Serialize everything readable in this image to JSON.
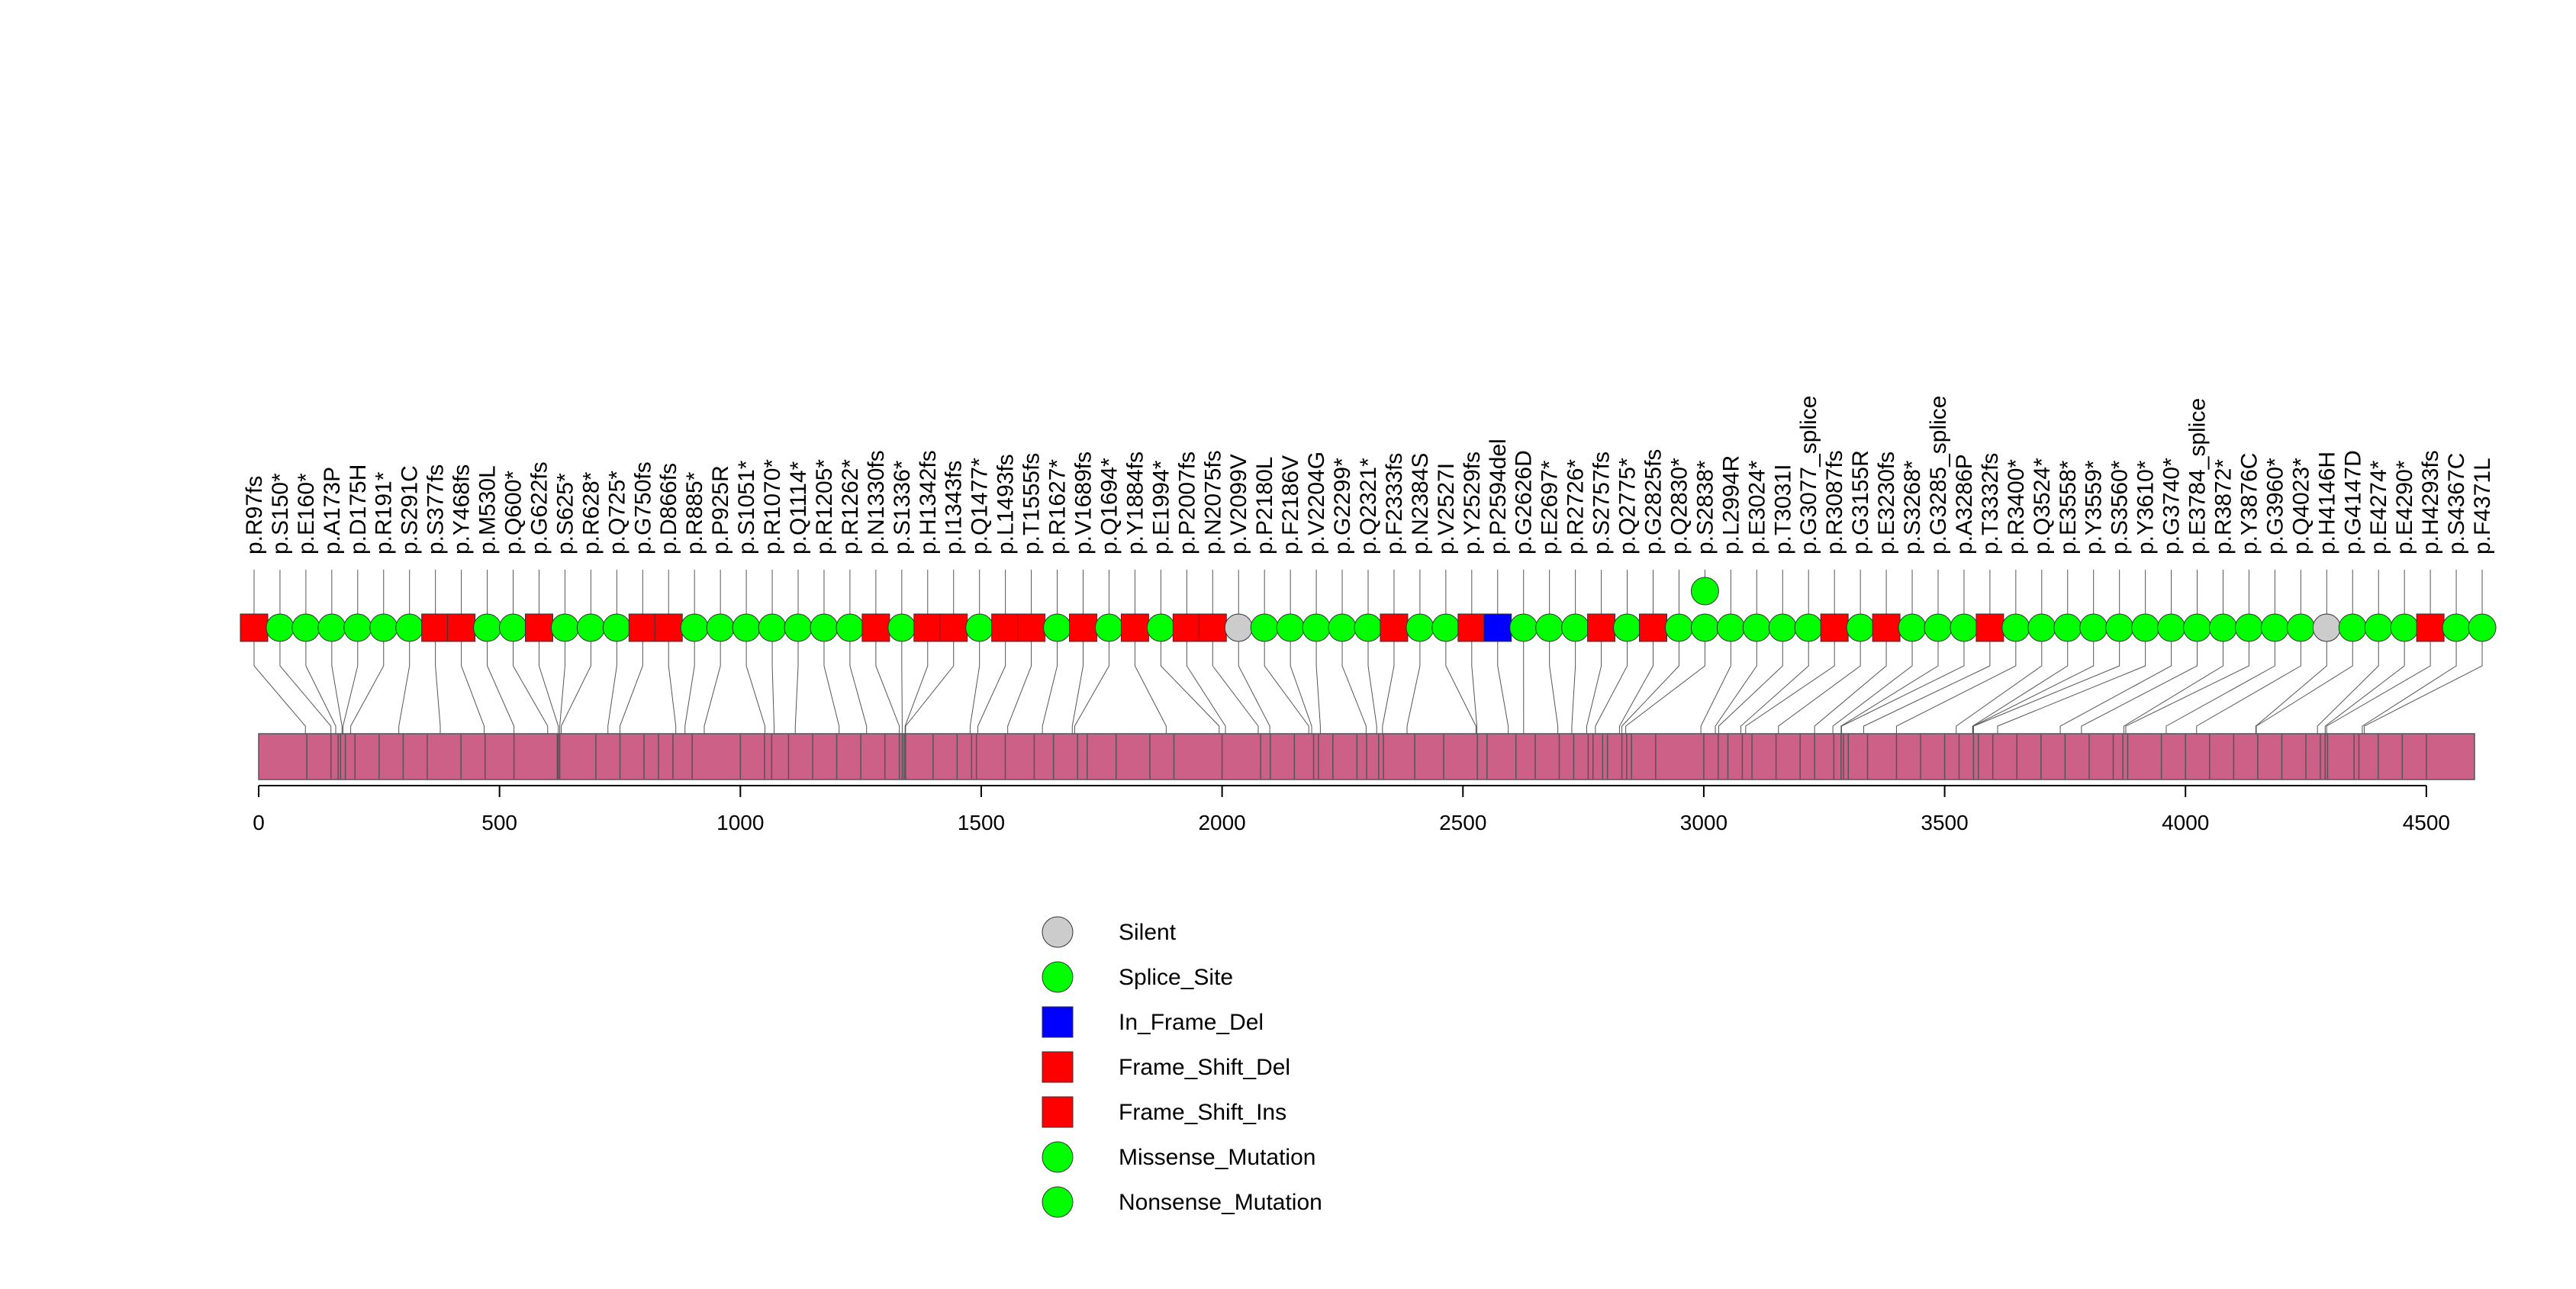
{
  "chart_data": {
    "type": "lollipop",
    "protein_length": 4600,
    "xlim": [
      0,
      4600
    ],
    "x_ticks": [
      0,
      500,
      1000,
      1500,
      2000,
      2500,
      3000,
      3500,
      4000,
      4500
    ],
    "x_tick_labels": [
      "0",
      "500",
      "1000",
      "1500",
      "2000",
      "2500",
      "3000",
      "3500",
      "4000",
      "4500"
    ],
    "domain_color": "#cc6087",
    "domain_dividers": [
      100,
      150,
      165,
      170,
      180,
      200,
      250,
      300,
      350,
      420,
      470,
      530,
      620,
      622,
      625,
      700,
      750,
      800,
      830,
      860,
      900,
      1000,
      1050,
      1065,
      1100,
      1150,
      1200,
      1250,
      1300,
      1330,
      1336,
      1340,
      1343,
      1400,
      1450,
      1480,
      1490,
      1550,
      1610,
      1650,
      1700,
      1720,
      1780,
      1850,
      1900,
      2000,
      2080,
      2100,
      2150,
      2190,
      2200,
      2230,
      2280,
      2300,
      2325,
      2335,
      2400,
      2460,
      2530,
      2550,
      2610,
      2650,
      2700,
      2730,
      2760,
      2770,
      2790,
      2800,
      2830,
      2840,
      2850,
      2900,
      3000,
      3030,
      3050,
      3080,
      3100,
      3150,
      3200,
      3230,
      3270,
      3285,
      3290,
      3300,
      3340,
      3400,
      3450,
      3500,
      3530,
      3560,
      3570,
      3600,
      3650,
      3700,
      3750,
      3800,
      3850,
      3870,
      3880,
      3950,
      4000,
      4050,
      4100,
      4150,
      4200,
      4250,
      4280,
      4290,
      4295,
      4350,
      4360,
      4400,
      4450,
      4500
    ],
    "mutation_colors": {
      "Silent": "#cccccc",
      "Splice_Site": "#00ff00",
      "In_Frame_Del": "#0000ff",
      "Frame_Shift_Del": "#ff0000",
      "Frame_Shift_Ins": "#ff0000",
      "Missense_Mutation": "#00ff00",
      "Nonsense_Mutation": "#00ff00"
    },
    "legend": [
      {
        "label": "Silent",
        "shape": "circle",
        "color": "#cccccc"
      },
      {
        "label": "Splice_Site",
        "shape": "circle",
        "color": "#00ff00"
      },
      {
        "label": "In_Frame_Del",
        "shape": "square",
        "color": "#0000ff"
      },
      {
        "label": "Frame_Shift_Del",
        "shape": "square",
        "color": "#ff0000"
      },
      {
        "label": "Frame_Shift_Ins",
        "shape": "square",
        "color": "#ff0000"
      },
      {
        "label": "Missense_Mutation",
        "shape": "circle",
        "color": "#00ff00"
      },
      {
        "label": "Nonsense_Mutation",
        "shape": "circle",
        "color": "#00ff00"
      }
    ],
    "mutations": [
      {
        "label": "p.R97fs",
        "position": 97,
        "type": "Frame_Shift_Del",
        "count": 1
      },
      {
        "label": "p.S150*",
        "position": 150,
        "type": "Nonsense_Mutation",
        "count": 1
      },
      {
        "label": "p.E160*",
        "position": 160,
        "type": "Nonsense_Mutation",
        "count": 1
      },
      {
        "label": "p.A173P",
        "position": 173,
        "type": "Missense_Mutation",
        "count": 1
      },
      {
        "label": "p.D175H",
        "position": 175,
        "type": "Missense_Mutation",
        "count": 1
      },
      {
        "label": "p.R191*",
        "position": 191,
        "type": "Nonsense_Mutation",
        "count": 1
      },
      {
        "label": "p.S291C",
        "position": 291,
        "type": "Missense_Mutation",
        "count": 1
      },
      {
        "label": "p.S377fs",
        "position": 377,
        "type": "Frame_Shift_Del",
        "count": 1
      },
      {
        "label": "p.Y468fs",
        "position": 468,
        "type": "Frame_Shift_Ins",
        "count": 1
      },
      {
        "label": "p.M530L",
        "position": 530,
        "type": "Missense_Mutation",
        "count": 1
      },
      {
        "label": "p.Q600*",
        "position": 600,
        "type": "Nonsense_Mutation",
        "count": 1
      },
      {
        "label": "p.G622fs",
        "position": 622,
        "type": "Frame_Shift_Del",
        "count": 1
      },
      {
        "label": "p.S625*",
        "position": 625,
        "type": "Nonsense_Mutation",
        "count": 1
      },
      {
        "label": "p.R628*",
        "position": 628,
        "type": "Nonsense_Mutation",
        "count": 1
      },
      {
        "label": "p.Q725*",
        "position": 725,
        "type": "Nonsense_Mutation",
        "count": 1
      },
      {
        "label": "p.G750fs",
        "position": 750,
        "type": "Frame_Shift_Del",
        "count": 1
      },
      {
        "label": "p.D866fs",
        "position": 866,
        "type": "Frame_Shift_Del",
        "count": 1
      },
      {
        "label": "p.R885*",
        "position": 885,
        "type": "Nonsense_Mutation",
        "count": 1
      },
      {
        "label": "p.P925R",
        "position": 925,
        "type": "Missense_Mutation",
        "count": 1
      },
      {
        "label": "p.S1051*",
        "position": 1051,
        "type": "Nonsense_Mutation",
        "count": 1
      },
      {
        "label": "p.R1070*",
        "position": 1070,
        "type": "Nonsense_Mutation",
        "count": 1
      },
      {
        "label": "p.Q1114*",
        "position": 1114,
        "type": "Nonsense_Mutation",
        "count": 1
      },
      {
        "label": "p.R1205*",
        "position": 1205,
        "type": "Nonsense_Mutation",
        "count": 1
      },
      {
        "label": "p.R1262*",
        "position": 1262,
        "type": "Nonsense_Mutation",
        "count": 1
      },
      {
        "label": "p.N1330fs",
        "position": 1330,
        "type": "Frame_Shift_Del",
        "count": 1
      },
      {
        "label": "p.S1336*",
        "position": 1336,
        "type": "Nonsense_Mutation",
        "count": 1
      },
      {
        "label": "p.H1342fs",
        "position": 1342,
        "type": "Frame_Shift_Del",
        "count": 1
      },
      {
        "label": "p.I1343fs",
        "position": 1343,
        "type": "Frame_Shift_Del",
        "count": 1
      },
      {
        "label": "p.Q1477*",
        "position": 1477,
        "type": "Nonsense_Mutation",
        "count": 1
      },
      {
        "label": "p.L1493fs",
        "position": 1493,
        "type": "Frame_Shift_Del",
        "count": 1
      },
      {
        "label": "p.T1555fs",
        "position": 1555,
        "type": "Frame_Shift_Del",
        "count": 1
      },
      {
        "label": "p.R1627*",
        "position": 1627,
        "type": "Nonsense_Mutation",
        "count": 1
      },
      {
        "label": "p.V1689fs",
        "position": 1689,
        "type": "Frame_Shift_Del",
        "count": 1
      },
      {
        "label": "p.Q1694*",
        "position": 1694,
        "type": "Nonsense_Mutation",
        "count": 1
      },
      {
        "label": "p.Y1884fs",
        "position": 1884,
        "type": "Frame_Shift_Del",
        "count": 1
      },
      {
        "label": "p.E1994*",
        "position": 1994,
        "type": "Nonsense_Mutation",
        "count": 1
      },
      {
        "label": "p.P2007fs",
        "position": 2007,
        "type": "Frame_Shift_Del",
        "count": 1
      },
      {
        "label": "p.N2075fs",
        "position": 2075,
        "type": "Frame_Shift_Del",
        "count": 1
      },
      {
        "label": "p.V2099V",
        "position": 2099,
        "type": "Silent",
        "count": 1
      },
      {
        "label": "p.P2180L",
        "position": 2180,
        "type": "Missense_Mutation",
        "count": 1
      },
      {
        "label": "p.F2186V",
        "position": 2186,
        "type": "Missense_Mutation",
        "count": 1
      },
      {
        "label": "p.V2204G",
        "position": 2204,
        "type": "Missense_Mutation",
        "count": 1
      },
      {
        "label": "p.G2299*",
        "position": 2299,
        "type": "Nonsense_Mutation",
        "count": 1
      },
      {
        "label": "p.Q2321*",
        "position": 2321,
        "type": "Nonsense_Mutation",
        "count": 1
      },
      {
        "label": "p.F2333fs",
        "position": 2333,
        "type": "Frame_Shift_Del",
        "count": 1
      },
      {
        "label": "p.N2384S",
        "position": 2384,
        "type": "Missense_Mutation",
        "count": 1
      },
      {
        "label": "p.V2527I",
        "position": 2527,
        "type": "Missense_Mutation",
        "count": 1
      },
      {
        "label": "p.Y2529fs",
        "position": 2529,
        "type": "Frame_Shift_Del",
        "count": 1
      },
      {
        "label": "p.P2594del",
        "position": 2594,
        "type": "In_Frame_Del",
        "count": 1
      },
      {
        "label": "p.G2626D",
        "position": 2626,
        "type": "Missense_Mutation",
        "count": 1
      },
      {
        "label": "p.E2697*",
        "position": 2697,
        "type": "Nonsense_Mutation",
        "count": 1
      },
      {
        "label": "p.R2726*",
        "position": 2726,
        "type": "Nonsense_Mutation",
        "count": 1
      },
      {
        "label": "p.S2757fs",
        "position": 2757,
        "type": "Frame_Shift_Del",
        "count": 1
      },
      {
        "label": "p.Q2775*",
        "position": 2775,
        "type": "Nonsense_Mutation",
        "count": 1
      },
      {
        "label": "p.G2825fs",
        "position": 2825,
        "type": "Frame_Shift_Del",
        "count": 1
      },
      {
        "label": "p.Q2830*",
        "position": 2830,
        "type": "Nonsense_Mutation",
        "count": 1
      },
      {
        "label": "p.S2838*",
        "position": 2838,
        "type": "Nonsense_Mutation",
        "count": 2
      },
      {
        "label": "p.L2994R",
        "position": 2994,
        "type": "Missense_Mutation",
        "count": 1
      },
      {
        "label": "p.E3024*",
        "position": 3024,
        "type": "Nonsense_Mutation",
        "count": 1
      },
      {
        "label": "p.T3031I",
        "position": 3031,
        "type": "Missense_Mutation",
        "count": 1
      },
      {
        "label": "p.G3077_splice",
        "position": 3077,
        "type": "Splice_Site",
        "count": 1
      },
      {
        "label": "p.R3087fs",
        "position": 3087,
        "type": "Frame_Shift_Del",
        "count": 1
      },
      {
        "label": "p.G3155R",
        "position": 3155,
        "type": "Missense_Mutation",
        "count": 1
      },
      {
        "label": "p.E3230fs",
        "position": 3230,
        "type": "Frame_Shift_Del",
        "count": 1
      },
      {
        "label": "p.S3268*",
        "position": 3268,
        "type": "Nonsense_Mutation",
        "count": 1
      },
      {
        "label": "p.G3285_splice",
        "position": 3285,
        "type": "Splice_Site",
        "count": 1
      },
      {
        "label": "p.A3286P",
        "position": 3286,
        "type": "Missense_Mutation",
        "count": 1
      },
      {
        "label": "p.T3332fs",
        "position": 3332,
        "type": "Frame_Shift_Del",
        "count": 1
      },
      {
        "label": "p.R3400*",
        "position": 3400,
        "type": "Nonsense_Mutation",
        "count": 1
      },
      {
        "label": "p.Q3524*",
        "position": 3524,
        "type": "Nonsense_Mutation",
        "count": 1
      },
      {
        "label": "p.E3558*",
        "position": 3558,
        "type": "Nonsense_Mutation",
        "count": 1
      },
      {
        "label": "p.Y3559*",
        "position": 3559,
        "type": "Nonsense_Mutation",
        "count": 1
      },
      {
        "label": "p.S3560*",
        "position": 3560,
        "type": "Nonsense_Mutation",
        "count": 1
      },
      {
        "label": "p.Y3610*",
        "position": 3610,
        "type": "Nonsense_Mutation",
        "count": 1
      },
      {
        "label": "p.G3740*",
        "position": 3740,
        "type": "Nonsense_Mutation",
        "count": 1
      },
      {
        "label": "p.E3784_splice",
        "position": 3784,
        "type": "Splice_Site",
        "count": 1
      },
      {
        "label": "p.R3872*",
        "position": 3872,
        "type": "Nonsense_Mutation",
        "count": 1
      },
      {
        "label": "p.Y3876C",
        "position": 3876,
        "type": "Missense_Mutation",
        "count": 1
      },
      {
        "label": "p.G3960*",
        "position": 3960,
        "type": "Nonsense_Mutation",
        "count": 1
      },
      {
        "label": "p.Q4023*",
        "position": 4023,
        "type": "Nonsense_Mutation",
        "count": 1
      },
      {
        "label": "p.H4146H",
        "position": 4146,
        "type": "Silent",
        "count": 1
      },
      {
        "label": "p.G4147D",
        "position": 4147,
        "type": "Missense_Mutation",
        "count": 1
      },
      {
        "label": "p.E4274*",
        "position": 4274,
        "type": "Nonsense_Mutation",
        "count": 1
      },
      {
        "label": "p.E4290*",
        "position": 4290,
        "type": "Nonsense_Mutation",
        "count": 1
      },
      {
        "label": "p.H4293fs",
        "position": 4293,
        "type": "Frame_Shift_Del",
        "count": 1
      },
      {
        "label": "p.S4367C",
        "position": 4367,
        "type": "Missense_Mutation",
        "count": 1
      },
      {
        "label": "p.F4371L",
        "position": 4371,
        "type": "Missense_Mutation",
        "count": 1
      }
    ]
  }
}
